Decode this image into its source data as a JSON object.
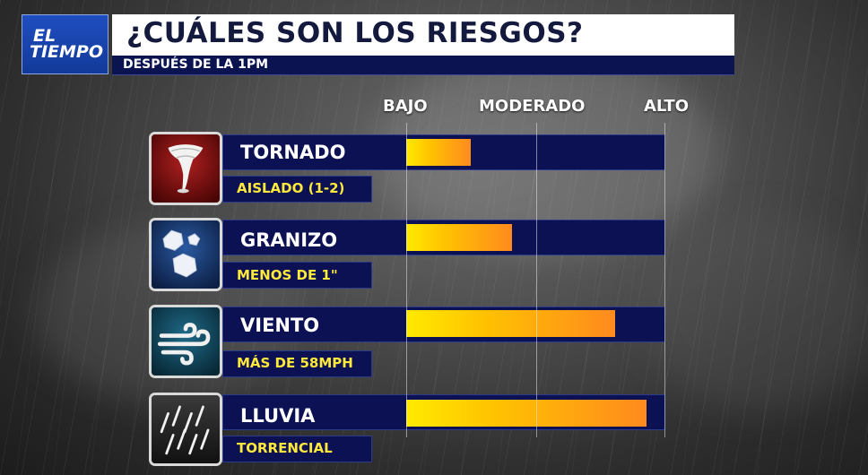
{
  "header": {
    "logo_line1": "EL",
    "logo_line2": "TIEMPO",
    "title": "¿CUÁLES SON LOS RIESGOS?",
    "subtitle": "DESPUÉS DE LA 1PM"
  },
  "scale": {
    "low": "BAJO",
    "moderate": "MODERADO",
    "high": "ALTO"
  },
  "colors": {
    "bar_start": "#ffea00",
    "bar_end": "#ff8a1e",
    "panel": "#0c1154",
    "subtext": "#ffe93a"
  },
  "risks": [
    {
      "icon": "tornado-icon",
      "name": "TORNADO",
      "detail": "AISLADO (1-2)",
      "level": 0.25
    },
    {
      "icon": "hail-icon",
      "name": "GRANIZO",
      "detail": "MENOS DE 1\"",
      "level": 0.41
    },
    {
      "icon": "wind-icon",
      "name": "VIENTO",
      "detail": "MÁS DE 58MPH",
      "level": 0.81
    },
    {
      "icon": "rain-icon",
      "name": "LLUVIA",
      "detail": "TORRENCIAL",
      "level": 0.93
    }
  ]
}
